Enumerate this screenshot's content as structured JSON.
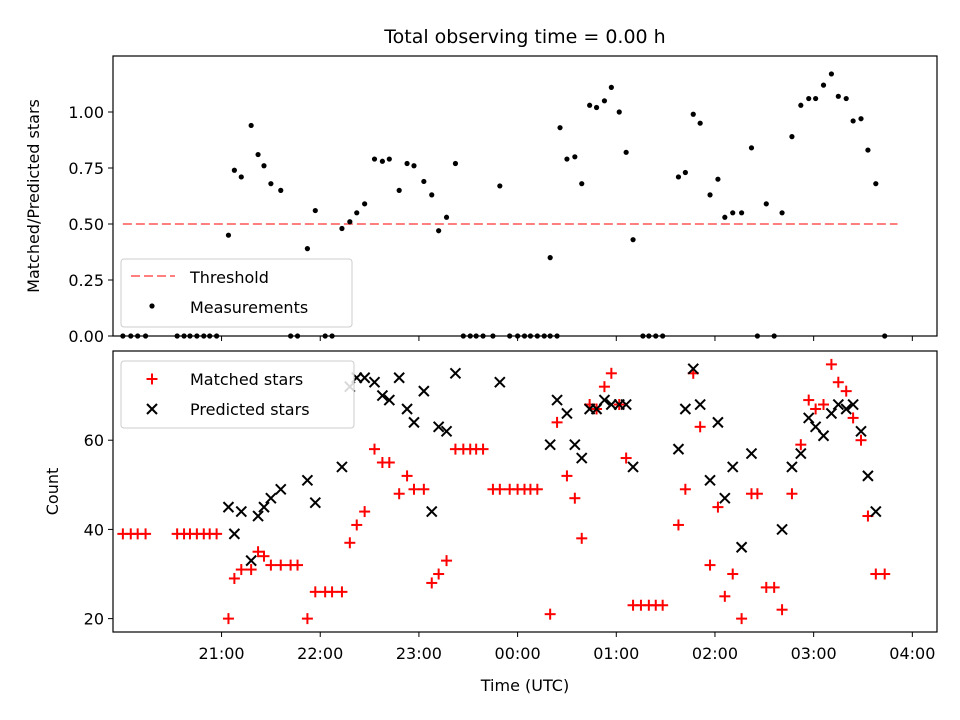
{
  "chart_data": [
    {
      "type": "scatter",
      "title": "Total observing time = 0.00 h",
      "xlabel": "",
      "ylabel": "Matched/Predicted stars",
      "xlim": [
        -0.6,
        7.75
      ],
      "ylim": [
        0,
        1.25
      ],
      "yticks": [
        0.0,
        0.25,
        0.5,
        0.75,
        1.0
      ],
      "ytick_labels": [
        "0.00",
        "0.25",
        "0.50",
        "0.75",
        "1.00"
      ],
      "legend_position": "bottom-left",
      "threshold": {
        "name": "Threshold",
        "value": 0.5,
        "x_start": -0.5,
        "x_end": 7.35,
        "color": "#ff7f7f"
      },
      "series": [
        {
          "name": "Measurements",
          "color": "#000000",
          "points": [
            [
              -0.5,
              0
            ],
            [
              -0.42,
              0
            ],
            [
              -0.35,
              0
            ],
            [
              -0.27,
              0
            ],
            [
              0.05,
              0
            ],
            [
              0.12,
              0
            ],
            [
              0.18,
              0
            ],
            [
              0.25,
              0
            ],
            [
              0.32,
              0
            ],
            [
              0.38,
              0
            ],
            [
              0.45,
              0
            ],
            [
              0.57,
              0.45
            ],
            [
              0.63,
              0.74
            ],
            [
              0.7,
              0.71
            ],
            [
              0.8,
              0.94
            ],
            [
              0.87,
              0.81
            ],
            [
              0.93,
              0.76
            ],
            [
              1.0,
              0.68
            ],
            [
              1.1,
              0.65
            ],
            [
              1.2,
              0
            ],
            [
              1.27,
              0
            ],
            [
              1.37,
              0.39
            ],
            [
              1.45,
              0.56
            ],
            [
              1.55,
              0
            ],
            [
              1.62,
              0
            ],
            [
              1.72,
              0.48
            ],
            [
              1.8,
              0.51
            ],
            [
              1.87,
              0.55
            ],
            [
              1.95,
              0.59
            ],
            [
              2.05,
              0.79
            ],
            [
              2.13,
              0.78
            ],
            [
              2.2,
              0.79
            ],
            [
              2.3,
              0.65
            ],
            [
              2.38,
              0.77
            ],
            [
              2.45,
              0.76
            ],
            [
              2.55,
              0.69
            ],
            [
              2.63,
              0.63
            ],
            [
              2.7,
              0.47
            ],
            [
              2.78,
              0.53
            ],
            [
              2.87,
              0.77
            ],
            [
              2.95,
              0
            ],
            [
              3.02,
              0
            ],
            [
              3.08,
              0
            ],
            [
              3.15,
              0
            ],
            [
              3.25,
              0
            ],
            [
              3.32,
              0.67
            ],
            [
              3.42,
              0
            ],
            [
              3.5,
              0
            ],
            [
              3.57,
              0
            ],
            [
              3.63,
              0
            ],
            [
              3.7,
              0
            ],
            [
              3.77,
              0
            ],
            [
              3.83,
              0
            ],
            [
              3.9,
              0
            ],
            [
              3.83,
              0.35
            ],
            [
              3.93,
              0.93
            ],
            [
              4.0,
              0.79
            ],
            [
              4.08,
              0.8
            ],
            [
              4.15,
              0.68
            ],
            [
              4.23,
              1.03
            ],
            [
              4.3,
              1.02
            ],
            [
              4.38,
              1.05
            ],
            [
              4.45,
              1.11
            ],
            [
              4.53,
              1.0
            ],
            [
              4.6,
              0.82
            ],
            [
              4.67,
              0.43
            ],
            [
              4.77,
              0
            ],
            [
              4.83,
              0
            ],
            [
              4.9,
              0
            ],
            [
              4.97,
              0
            ],
            [
              5.13,
              0.71
            ],
            [
              5.2,
              0.73
            ],
            [
              5.28,
              0.99
            ],
            [
              5.35,
              0.95
            ],
            [
              5.45,
              0.63
            ],
            [
              5.53,
              0.7
            ],
            [
              5.6,
              0.53
            ],
            [
              5.68,
              0.55
            ],
            [
              5.77,
              0.55
            ],
            [
              5.87,
              0.84
            ],
            [
              5.93,
              0
            ],
            [
              6.02,
              0.59
            ],
            [
              6.1,
              0
            ],
            [
              6.18,
              0.55
            ],
            [
              6.28,
              0.89
            ],
            [
              6.37,
              1.03
            ],
            [
              6.45,
              1.06
            ],
            [
              6.52,
              1.06
            ],
            [
              6.6,
              1.12
            ],
            [
              6.68,
              1.17
            ],
            [
              6.75,
              1.07
            ],
            [
              6.83,
              1.06
            ],
            [
              6.9,
              0.96
            ],
            [
              6.98,
              0.97
            ],
            [
              7.05,
              0.83
            ],
            [
              7.13,
              0.68
            ],
            [
              7.22,
              0
            ]
          ]
        }
      ]
    },
    {
      "type": "scatter",
      "title": "",
      "xlabel": "Time (UTC)",
      "ylabel": "Count",
      "xlim": [
        -0.6,
        7.75
      ],
      "ylim": [
        17,
        80
      ],
      "yticks": [
        20,
        40,
        60
      ],
      "ytick_labels": [
        "20",
        "40",
        "60"
      ],
      "xticks": [
        0.5,
        1.5,
        2.5,
        3.5,
        4.5,
        5.5,
        6.5,
        7.5
      ],
      "xtick_labels": [
        "21:00",
        "22:00",
        "23:00",
        "00:00",
        "01:00",
        "02:00",
        "03:00",
        "04:00"
      ],
      "legend_position": "top-left",
      "series": [
        {
          "name": "Matched stars",
          "color": "#ff0000",
          "marker": "plus",
          "points": [
            [
              -0.5,
              39
            ],
            [
              -0.42,
              39
            ],
            [
              -0.35,
              39
            ],
            [
              -0.27,
              39
            ],
            [
              0.05,
              39
            ],
            [
              0.12,
              39
            ],
            [
              0.18,
              39
            ],
            [
              0.25,
              39
            ],
            [
              0.32,
              39
            ],
            [
              0.38,
              39
            ],
            [
              0.45,
              39
            ],
            [
              0.57,
              20
            ],
            [
              0.63,
              29
            ],
            [
              0.7,
              31
            ],
            [
              0.8,
              31
            ],
            [
              0.87,
              35
            ],
            [
              0.93,
              34
            ],
            [
              1.0,
              32
            ],
            [
              1.1,
              32
            ],
            [
              1.2,
              32
            ],
            [
              1.27,
              32
            ],
            [
              1.37,
              20
            ],
            [
              1.45,
              26
            ],
            [
              1.55,
              26
            ],
            [
              1.62,
              26
            ],
            [
              1.72,
              26
            ],
            [
              1.8,
              37
            ],
            [
              1.87,
              41
            ],
            [
              1.95,
              44
            ],
            [
              2.05,
              58
            ],
            [
              2.13,
              55
            ],
            [
              2.2,
              55
            ],
            [
              2.3,
              48
            ],
            [
              2.38,
              52
            ],
            [
              2.45,
              49
            ],
            [
              2.55,
              49
            ],
            [
              2.63,
              28
            ],
            [
              2.7,
              30
            ],
            [
              2.78,
              33
            ],
            [
              2.87,
              58
            ],
            [
              2.95,
              58
            ],
            [
              3.02,
              58
            ],
            [
              3.08,
              58
            ],
            [
              3.15,
              58
            ],
            [
              3.25,
              49
            ],
            [
              3.32,
              49
            ],
            [
              3.42,
              49
            ],
            [
              3.5,
              49
            ],
            [
              3.57,
              49
            ],
            [
              3.63,
              49
            ],
            [
              3.7,
              49
            ],
            [
              3.83,
              21
            ],
            [
              3.9,
              64
            ],
            [
              4.0,
              52
            ],
            [
              4.08,
              47
            ],
            [
              4.15,
              38
            ],
            [
              4.23,
              68
            ],
            [
              4.3,
              67
            ],
            [
              4.38,
              72
            ],
            [
              4.45,
              75
            ],
            [
              4.53,
              68
            ],
            [
              4.6,
              56
            ],
            [
              4.67,
              23
            ],
            [
              4.75,
              23
            ],
            [
              4.83,
              23
            ],
            [
              4.9,
              23
            ],
            [
              4.97,
              23
            ],
            [
              5.13,
              41
            ],
            [
              5.2,
              49
            ],
            [
              5.28,
              75
            ],
            [
              5.35,
              63
            ],
            [
              5.45,
              32
            ],
            [
              5.53,
              45
            ],
            [
              5.6,
              25
            ],
            [
              5.68,
              30
            ],
            [
              5.77,
              20
            ],
            [
              5.87,
              48
            ],
            [
              5.93,
              48
            ],
            [
              6.02,
              27
            ],
            [
              6.1,
              27
            ],
            [
              6.18,
              22
            ],
            [
              6.28,
              48
            ],
            [
              6.37,
              59
            ],
            [
              6.45,
              69
            ],
            [
              6.52,
              67
            ],
            [
              6.6,
              68
            ],
            [
              6.68,
              77
            ],
            [
              6.75,
              73
            ],
            [
              6.83,
              71
            ],
            [
              6.9,
              65
            ],
            [
              6.98,
              60
            ],
            [
              7.05,
              43
            ],
            [
              7.13,
              30
            ],
            [
              7.22,
              30
            ]
          ]
        },
        {
          "name": "Predicted stars",
          "color": "#000000",
          "marker": "x",
          "points": [
            [
              0.57,
              45
            ],
            [
              0.63,
              39
            ],
            [
              0.7,
              44
            ],
            [
              0.8,
              33
            ],
            [
              0.87,
              43
            ],
            [
              0.93,
              45
            ],
            [
              1.0,
              47
            ],
            [
              1.1,
              49
            ],
            [
              1.37,
              51
            ],
            [
              1.45,
              46
            ],
            [
              1.72,
              54
            ],
            [
              1.8,
              72
            ],
            [
              1.87,
              74
            ],
            [
              1.95,
              74
            ],
            [
              2.05,
              73
            ],
            [
              2.13,
              70
            ],
            [
              2.2,
              69
            ],
            [
              2.3,
              74
            ],
            [
              2.38,
              67
            ],
            [
              2.45,
              64
            ],
            [
              2.55,
              71
            ],
            [
              2.63,
              44
            ],
            [
              2.7,
              63
            ],
            [
              2.78,
              62
            ],
            [
              2.87,
              75
            ],
            [
              3.32,
              73
            ],
            [
              3.83,
              59
            ],
            [
              3.9,
              69
            ],
            [
              4.0,
              66
            ],
            [
              4.08,
              59
            ],
            [
              4.15,
              56
            ],
            [
              4.23,
              67
            ],
            [
              4.3,
              67
            ],
            [
              4.38,
              69
            ],
            [
              4.45,
              68
            ],
            [
              4.53,
              68
            ],
            [
              4.6,
              68
            ],
            [
              4.67,
              54
            ],
            [
              5.13,
              58
            ],
            [
              5.2,
              67
            ],
            [
              5.28,
              76
            ],
            [
              5.35,
              68
            ],
            [
              5.45,
              51
            ],
            [
              5.53,
              64
            ],
            [
              5.6,
              47
            ],
            [
              5.68,
              54
            ],
            [
              5.77,
              36
            ],
            [
              5.87,
              57
            ],
            [
              6.18,
              40
            ],
            [
              6.28,
              54
            ],
            [
              6.37,
              57
            ],
            [
              6.45,
              65
            ],
            [
              6.52,
              63
            ],
            [
              6.6,
              61
            ],
            [
              6.68,
              66
            ],
            [
              6.75,
              68
            ],
            [
              6.83,
              67
            ],
            [
              6.9,
              68
            ],
            [
              6.98,
              62
            ],
            [
              7.05,
              52
            ],
            [
              7.13,
              44
            ]
          ]
        }
      ]
    }
  ]
}
